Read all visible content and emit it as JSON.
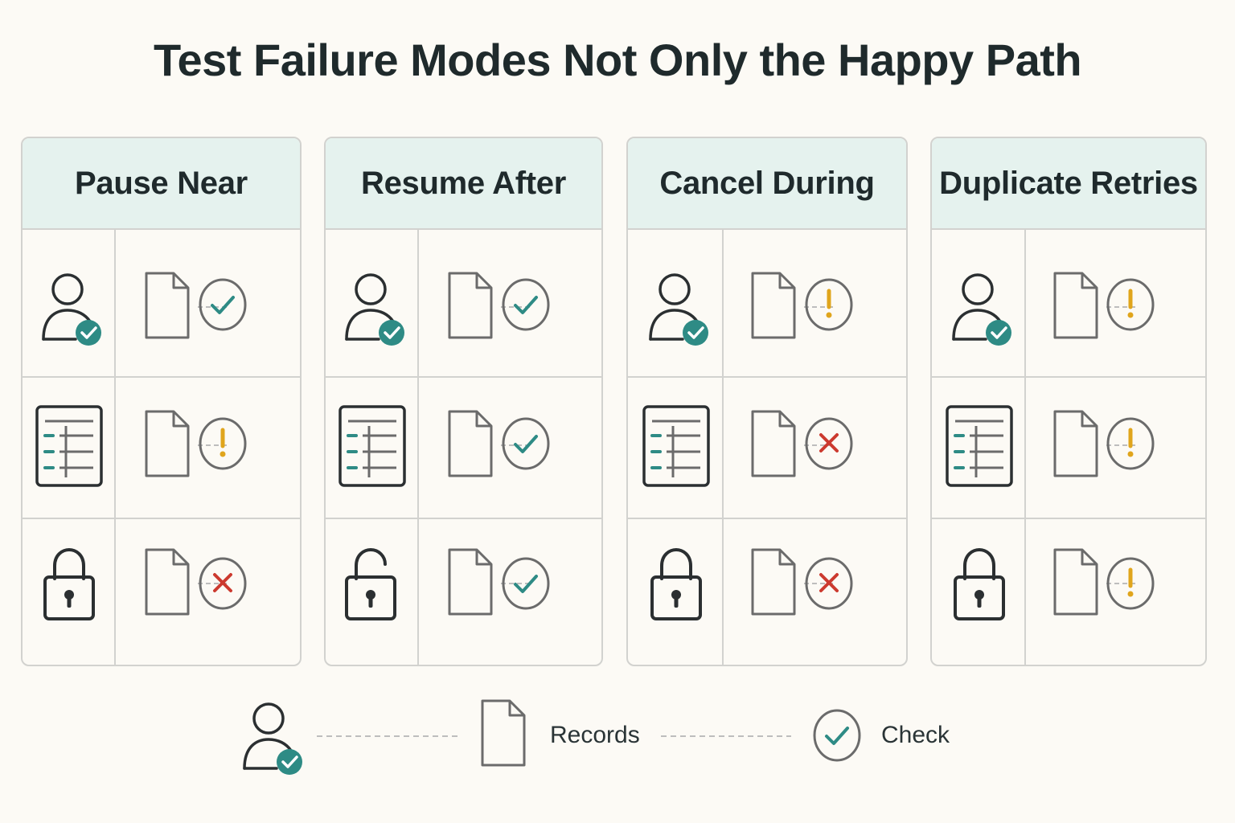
{
  "title": "Test Failure Modes Not Only the Happy Path",
  "colors": {
    "teal": "#2e8b85",
    "amber": "#e0a51c",
    "red": "#cc3a2f",
    "ink": "#2b2f31",
    "grey": "#6b6b6b"
  },
  "panels": [
    {
      "header": "Pause Near",
      "rows": [
        {
          "actor": "user-check-icon",
          "status": "check"
        },
        {
          "actor": "list-document-icon",
          "status": "warning"
        },
        {
          "actor": "lock-closed-icon",
          "status": "error"
        }
      ]
    },
    {
      "header": "Resume After",
      "rows": [
        {
          "actor": "user-check-icon",
          "status": "check"
        },
        {
          "actor": "list-document-icon",
          "status": "check"
        },
        {
          "actor": "lock-open-icon",
          "status": "check"
        }
      ]
    },
    {
      "header": "Cancel During",
      "rows": [
        {
          "actor": "user-check-icon",
          "status": "warning"
        },
        {
          "actor": "list-document-icon",
          "status": "error"
        },
        {
          "actor": "lock-closed-icon",
          "status": "error"
        }
      ]
    },
    {
      "header": "Duplicate Retries",
      "rows": [
        {
          "actor": "user-check-icon",
          "status": "warning"
        },
        {
          "actor": "list-document-icon",
          "status": "warning"
        },
        {
          "actor": "lock-closed-icon",
          "status": "warning"
        }
      ]
    }
  ],
  "legend": {
    "records_label": "Records",
    "check_label": "Check"
  }
}
